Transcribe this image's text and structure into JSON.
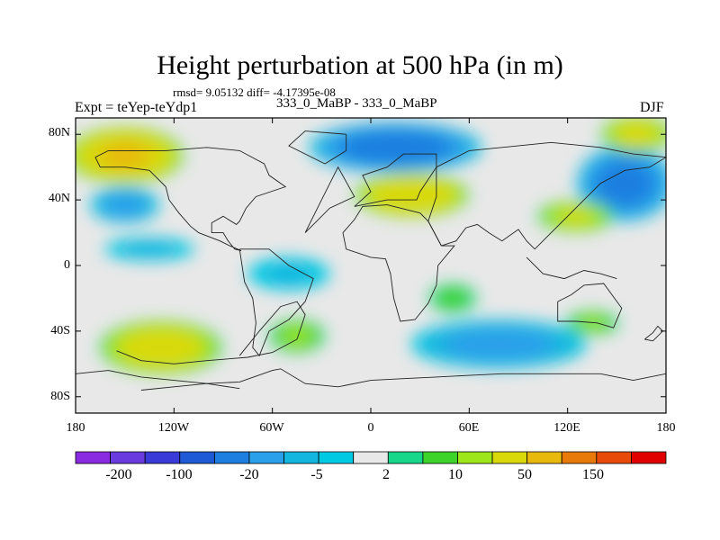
{
  "chart_data": {
    "type": "heatmap",
    "title": "Height perturbation at 500 hPa (in m)",
    "stats": "rmsd= 9.05132 diff= -4.17395e-08",
    "left_label": "Expt = teYep-teYdp1",
    "center_label": "333_0_MaBP - 333_0_MaBP",
    "right_label": "DJF",
    "x_axis": {
      "range": [
        -180,
        180
      ],
      "ticks": [
        "180",
        "120W",
        "60W",
        "0",
        "60E",
        "120E",
        "180"
      ]
    },
    "y_axis": {
      "range": [
        -90,
        90
      ],
      "ticks": [
        "80N",
        "40N",
        "0",
        "40S",
        "80S"
      ]
    },
    "colorbar": {
      "levels": [
        -200,
        -150,
        -100,
        -50,
        -20,
        -10,
        -5,
        -2,
        2,
        5,
        10,
        20,
        50,
        100,
        150,
        200
      ],
      "labels": [
        "-200",
        "-100",
        "-20",
        "-5",
        "2",
        "10",
        "50",
        "150"
      ],
      "colors": [
        "#8a2be2",
        "#6a3ce0",
        "#3a3ad8",
        "#1e5ad6",
        "#1e7fe0",
        "#2aa0ea",
        "#12b6df",
        "#00c9e4",
        "#e8e8e8",
        "#18d68a",
        "#3ed32a",
        "#9ce61a",
        "#d9d90a",
        "#e8b90a",
        "#e87a0a",
        "#e84a0a",
        "#e00000"
      ]
    },
    "fields": [
      {
        "name": "north-pacific-high",
        "lon": -150,
        "lat": 67,
        "rx": 34,
        "ry": 16,
        "value": 58
      },
      {
        "name": "eurasia-high",
        "lon": 25,
        "lat": 43,
        "rx": 33,
        "ry": 12,
        "value": 48
      },
      {
        "name": "north-atlantic-low",
        "lon": 15,
        "lat": 72,
        "rx": 52,
        "ry": 14,
        "value": -32
      },
      {
        "name": "north-pacific-east-low",
        "lon": 155,
        "lat": 50,
        "rx": 28,
        "ry": 22,
        "value": -28
      },
      {
        "name": "west-pacific-high",
        "lon": 125,
        "lat": 30,
        "rx": 22,
        "ry": 8,
        "value": 22
      },
      {
        "name": "arctic-high",
        "lon": 162,
        "lat": 80,
        "rx": 20,
        "ry": 10,
        "value": 30
      },
      {
        "name": "south-pacific-high",
        "lon": -128,
        "lat": -50,
        "rx": 36,
        "ry": 15,
        "value": 36
      },
      {
        "name": "south-atlantic-high",
        "lon": -45,
        "lat": -43,
        "rx": 16,
        "ry": 9,
        "value": 11
      },
      {
        "name": "southern-ocean-low",
        "lon": 78,
        "lat": -48,
        "rx": 55,
        "ry": 14,
        "value": -14
      },
      {
        "name": "south-indian-high",
        "lon": 50,
        "lat": -20,
        "rx": 14,
        "ry": 8,
        "value": 7
      },
      {
        "name": "south-west-pacific-high",
        "lon": 135,
        "lat": -35,
        "rx": 15,
        "ry": 6,
        "value": 10
      },
      {
        "name": "tropical-pacific-low",
        "lon": -135,
        "lat": 10,
        "rx": 30,
        "ry": 6,
        "value": -6
      },
      {
        "name": "tropical-atlantic-low",
        "lon": -50,
        "lat": -5,
        "rx": 28,
        "ry": 10,
        "value": -5
      },
      {
        "name": "pacific-mid-low",
        "lon": -150,
        "lat": 37,
        "rx": 20,
        "ry": 10,
        "value": -14
      }
    ],
    "coastlines": [
      [
        [
          -180,
          -66
        ],
        [
          -160,
          -64
        ],
        [
          -140,
          -68
        ],
        [
          -120,
          -70
        ],
        [
          -100,
          -72
        ],
        [
          -80,
          -71
        ],
        [
          -60,
          -64
        ],
        [
          -55,
          -63
        ],
        [
          -40,
          -72
        ],
        [
          -20,
          -74
        ],
        [
          0,
          -70
        ],
        [
          20,
          -69
        ],
        [
          40,
          -68
        ],
        [
          60,
          -67
        ],
        [
          80,
          -66
        ],
        [
          100,
          -66
        ],
        [
          120,
          -66
        ],
        [
          140,
          -66
        ],
        [
          160,
          -70
        ],
        [
          180,
          -66
        ]
      ],
      [
        [
          -155,
          -52
        ],
        [
          -140,
          -58
        ],
        [
          -120,
          -60
        ],
        [
          -100,
          -58
        ],
        [
          -75,
          -56
        ],
        [
          -60,
          -53
        ],
        [
          -45,
          -45
        ],
        [
          -40,
          -30
        ],
        [
          -45,
          -22
        ],
        [
          -55,
          -25
        ],
        [
          -68,
          -40
        ],
        [
          -80,
          -55
        ]
      ],
      [
        [
          -80,
          -75
        ],
        [
          -100,
          -72
        ],
        [
          -120,
          -74
        ],
        [
          -140,
          -76
        ]
      ],
      [
        [
          -80,
          10
        ],
        [
          -77,
          -10
        ],
        [
          -72,
          -20
        ],
        [
          -70,
          -35
        ],
        [
          -72,
          -50
        ],
        [
          -68,
          -55
        ],
        [
          -62,
          -40
        ],
        [
          -50,
          -33
        ],
        [
          -40,
          -22
        ],
        [
          -35,
          -8
        ],
        [
          -50,
          0
        ],
        [
          -62,
          10
        ],
        [
          -75,
          10
        ],
        [
          -80,
          10
        ]
      ],
      [
        [
          -40,
          20
        ],
        [
          -30,
          40
        ],
        [
          -20,
          60
        ],
        [
          -10,
          42
        ],
        [
          -25,
          35
        ],
        [
          -40,
          20
        ]
      ],
      [
        [
          -15,
          80
        ],
        [
          -40,
          82
        ],
        [
          -50,
          73
        ],
        [
          -28,
          62
        ],
        [
          -15,
          70
        ],
        [
          -15,
          80
        ]
      ],
      [
        [
          -17,
          20
        ],
        [
          -15,
          10
        ],
        [
          0,
          5
        ],
        [
          9,
          4
        ],
        [
          12,
          -5
        ],
        [
          14,
          -20
        ],
        [
          18,
          -34
        ],
        [
          27,
          -33
        ],
        [
          35,
          -23
        ],
        [
          40,
          -12
        ],
        [
          41,
          0
        ],
        [
          51,
          12
        ],
        [
          43,
          12
        ],
        [
          35,
          27
        ],
        [
          30,
          32
        ],
        [
          10,
          37
        ],
        [
          -5,
          36
        ],
        [
          -10,
          28
        ],
        [
          -17,
          20
        ]
      ],
      [
        [
          -10,
          36
        ],
        [
          0,
          45
        ],
        [
          -5,
          55
        ],
        [
          10,
          60
        ],
        [
          20,
          68
        ],
        [
          40,
          68
        ],
        [
          40,
          60
        ],
        [
          30,
          45
        ],
        [
          28,
          40
        ],
        [
          10,
          40
        ],
        [
          -10,
          36
        ]
      ],
      [
        [
          40,
          60
        ],
        [
          60,
          70
        ],
        [
          80,
          72
        ],
        [
          110,
          75
        ],
        [
          140,
          72
        ],
        [
          160,
          68
        ],
        [
          180,
          66
        ],
        [
          170,
          60
        ],
        [
          155,
          58
        ],
        [
          140,
          50
        ],
        [
          130,
          40
        ],
        [
          120,
          30
        ],
        [
          110,
          20
        ],
        [
          100,
          10
        ],
        [
          95,
          15
        ],
        [
          90,
          22
        ],
        [
          80,
          15
        ],
        [
          72,
          20
        ],
        [
          65,
          25
        ],
        [
          58,
          23
        ],
        [
          52,
          15
        ],
        [
          43,
          12
        ],
        [
          35,
          27
        ],
        [
          40,
          42
        ],
        [
          40,
          60
        ]
      ],
      [
        [
          95,
          5
        ],
        [
          105,
          -5
        ],
        [
          118,
          -8
        ],
        [
          130,
          -3
        ],
        [
          140,
          -5
        ],
        [
          150,
          -8
        ]
      ],
      [
        [
          114,
          -22
        ],
        [
          114,
          -34
        ],
        [
          125,
          -34
        ],
        [
          138,
          -35
        ],
        [
          148,
          -38
        ],
        [
          153,
          -26
        ],
        [
          142,
          -11
        ],
        [
          130,
          -12
        ],
        [
          122,
          -18
        ],
        [
          114,
          -22
        ]
      ],
      [
        [
          167,
          -45
        ],
        [
          172,
          -41
        ],
        [
          175,
          -37
        ],
        [
          178,
          -40
        ],
        [
          172,
          -46
        ],
        [
          167,
          -45
        ]
      ],
      [
        [
          -168,
          66
        ],
        [
          -160,
          70
        ],
        [
          -140,
          70
        ],
        [
          -125,
          70
        ],
        [
          -100,
          72
        ],
        [
          -80,
          70
        ],
        [
          -65,
          62
        ],
        [
          -62,
          55
        ],
        [
          -52,
          48
        ],
        [
          -70,
          42
        ],
        [
          -76,
          35
        ],
        [
          -80,
          27
        ],
        [
          -82,
          25
        ],
        [
          -90,
          30
        ],
        [
          -97,
          26
        ],
        [
          -97,
          20
        ],
        [
          -90,
          20
        ],
        [
          -87,
          15
        ],
        [
          -83,
          10
        ],
        [
          -79,
          9
        ],
        [
          -86,
          12
        ],
        [
          -92,
          15
        ],
        [
          -105,
          20
        ],
        [
          -110,
          24
        ],
        [
          -117,
          32
        ],
        [
          -123,
          40
        ],
        [
          -125,
          48
        ],
        [
          -135,
          58
        ],
        [
          -150,
          60
        ],
        [
          -165,
          60
        ],
        [
          -168,
          66
        ]
      ]
    ]
  }
}
